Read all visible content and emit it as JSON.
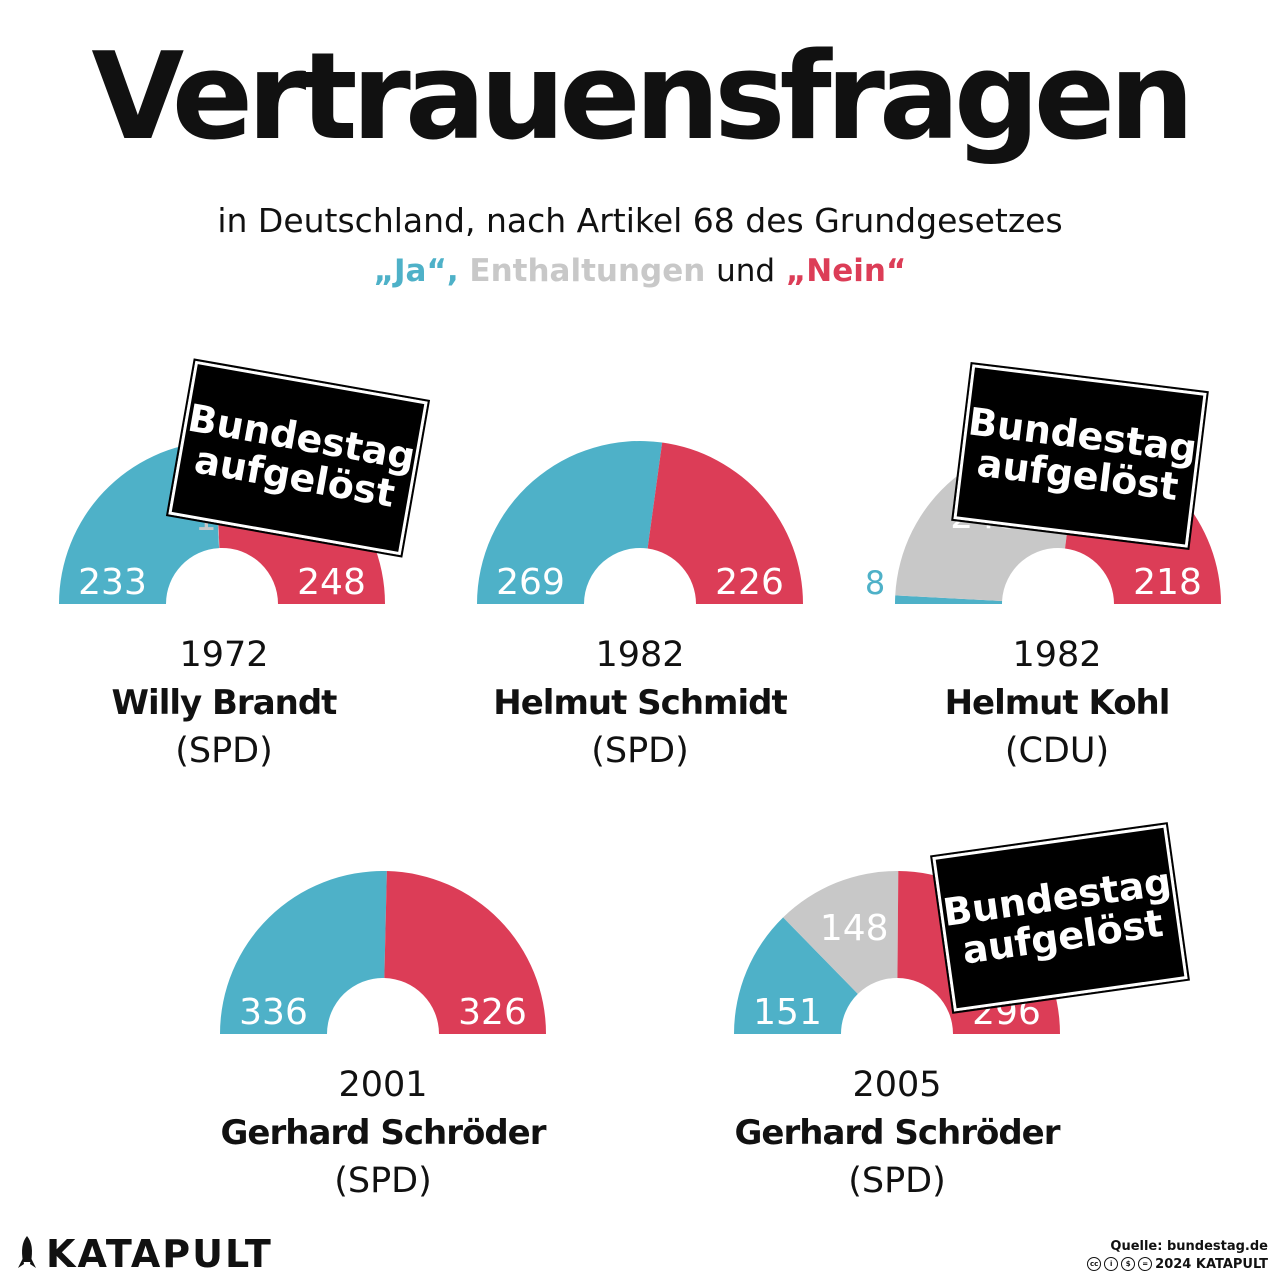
{
  "title": "Vertrauensfragen",
  "subtitle": "in Deutschland, nach Artikel 68 des Grundgesetzes",
  "legend": {
    "yes_label": "„Ja“,",
    "abstain_label": "Enthaltungen",
    "and_label": "und",
    "no_label": "„Nein“"
  },
  "colors": {
    "yes": "#4eb1c8",
    "abstain": "#c8c8c8",
    "no": "#dc3d57",
    "stamp_bg": "#000000"
  },
  "stamp_text": [
    "Bundestag",
    "aufgelöst"
  ],
  "chart_data": [
    {
      "type": "pie",
      "year": "1972",
      "chancellor": "Willy Brandt",
      "party": "(SPD)",
      "yes": 233,
      "abstain": 1,
      "no": 248,
      "dissolved": true
    },
    {
      "type": "pie",
      "year": "1982",
      "chancellor": "Helmut Schmidt",
      "party": "(SPD)",
      "yes": 269,
      "abstain": 0,
      "no": 226,
      "dissolved": false
    },
    {
      "type": "pie",
      "year": "1982",
      "chancellor": "Helmut Kohl",
      "party": "(CDU)",
      "yes": 8,
      "abstain": 248,
      "no": 218,
      "dissolved": true
    },
    {
      "type": "pie",
      "year": "2001",
      "chancellor": "Gerhard Schröder",
      "party": "(SPD)",
      "yes": 336,
      "abstain": 0,
      "no": 326,
      "dissolved": false
    },
    {
      "type": "pie",
      "year": "2005",
      "chancellor": "Gerhard Schröder",
      "party": "(SPD)",
      "yes": 151,
      "abstain": 148,
      "no": 296,
      "dissolved": true
    }
  ],
  "footer": {
    "brand": "KATAPULT",
    "source": "Quelle: bundestag.de",
    "copyright": "2024 KATAPULT"
  }
}
